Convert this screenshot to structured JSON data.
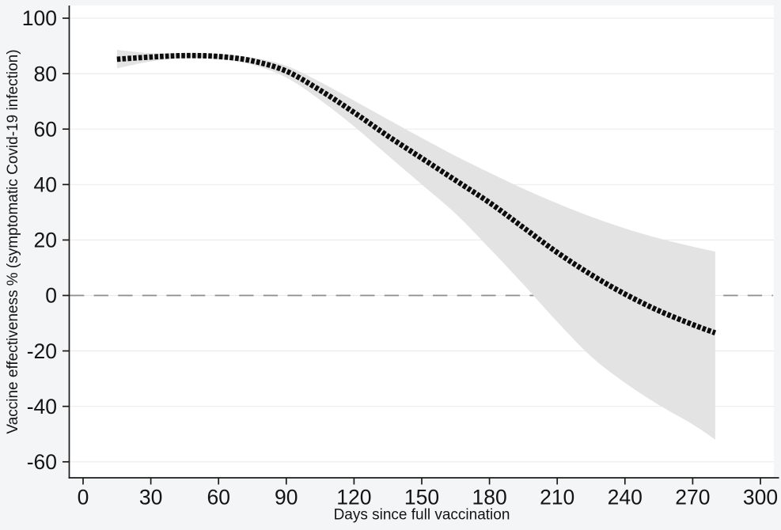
{
  "chart_data": {
    "type": "line",
    "title": "",
    "xlabel": "Days since full vaccination",
    "ylabel": "Vaccine effectiveness % (symptomatic Covid-19 infection)",
    "x_ticks": [
      0,
      30,
      60,
      90,
      120,
      150,
      180,
      210,
      240,
      270,
      300
    ],
    "y_ticks": [
      100,
      80,
      60,
      40,
      20,
      0,
      -20,
      -40,
      -60
    ],
    "xlim": [
      -6,
      307
    ],
    "ylim": [
      -66,
      105
    ],
    "grid": "horizontal-light",
    "legend": "none",
    "reference_line_y": 0,
    "x": [
      15,
      30,
      45,
      60,
      75,
      90,
      105,
      120,
      135,
      150,
      165,
      180,
      195,
      210,
      225,
      240,
      255,
      270,
      280
    ],
    "series": [
      {
        "name": "Vaccine effectiveness (point estimate)",
        "style": "thick-dashed-black",
        "values": [
          85.2,
          86.0,
          86.5,
          86.2,
          84.6,
          80.9,
          74.0,
          66.0,
          57.5,
          49.5,
          41.5,
          33.5,
          24.5,
          15.5,
          7.5,
          0.5,
          -5.5,
          -10.5,
          -13.5
        ]
      },
      {
        "name": "95% CI upper bound",
        "style": "band-edge",
        "values": [
          88.6,
          87.4,
          87.3,
          87.0,
          85.8,
          82.8,
          77.0,
          70.3,
          63.5,
          56.8,
          50.3,
          44.3,
          38.5,
          33.2,
          28.4,
          24.2,
          20.6,
          17.6,
          15.8
        ]
      },
      {
        "name": "95% CI lower bound",
        "style": "band-edge",
        "values": [
          81.9,
          84.4,
          85.6,
          85.3,
          83.2,
          78.6,
          70.5,
          61.0,
          50.5,
          40.0,
          29.5,
          17.0,
          4.0,
          -9.5,
          -22.0,
          -31.5,
          -39.5,
          -46.5,
          -52.0
        ]
      }
    ],
    "styles": {
      "line_color": "#0d0d0d",
      "band_color": "#e3e3e3",
      "grid_color": "#ececec",
      "zero_line_color": "#8c8c8c",
      "axis_color": "#1a1a1a",
      "plot_bg": "#ffffff",
      "outer_bg": "#f4f5f6",
      "text_color": "#141414"
    }
  }
}
